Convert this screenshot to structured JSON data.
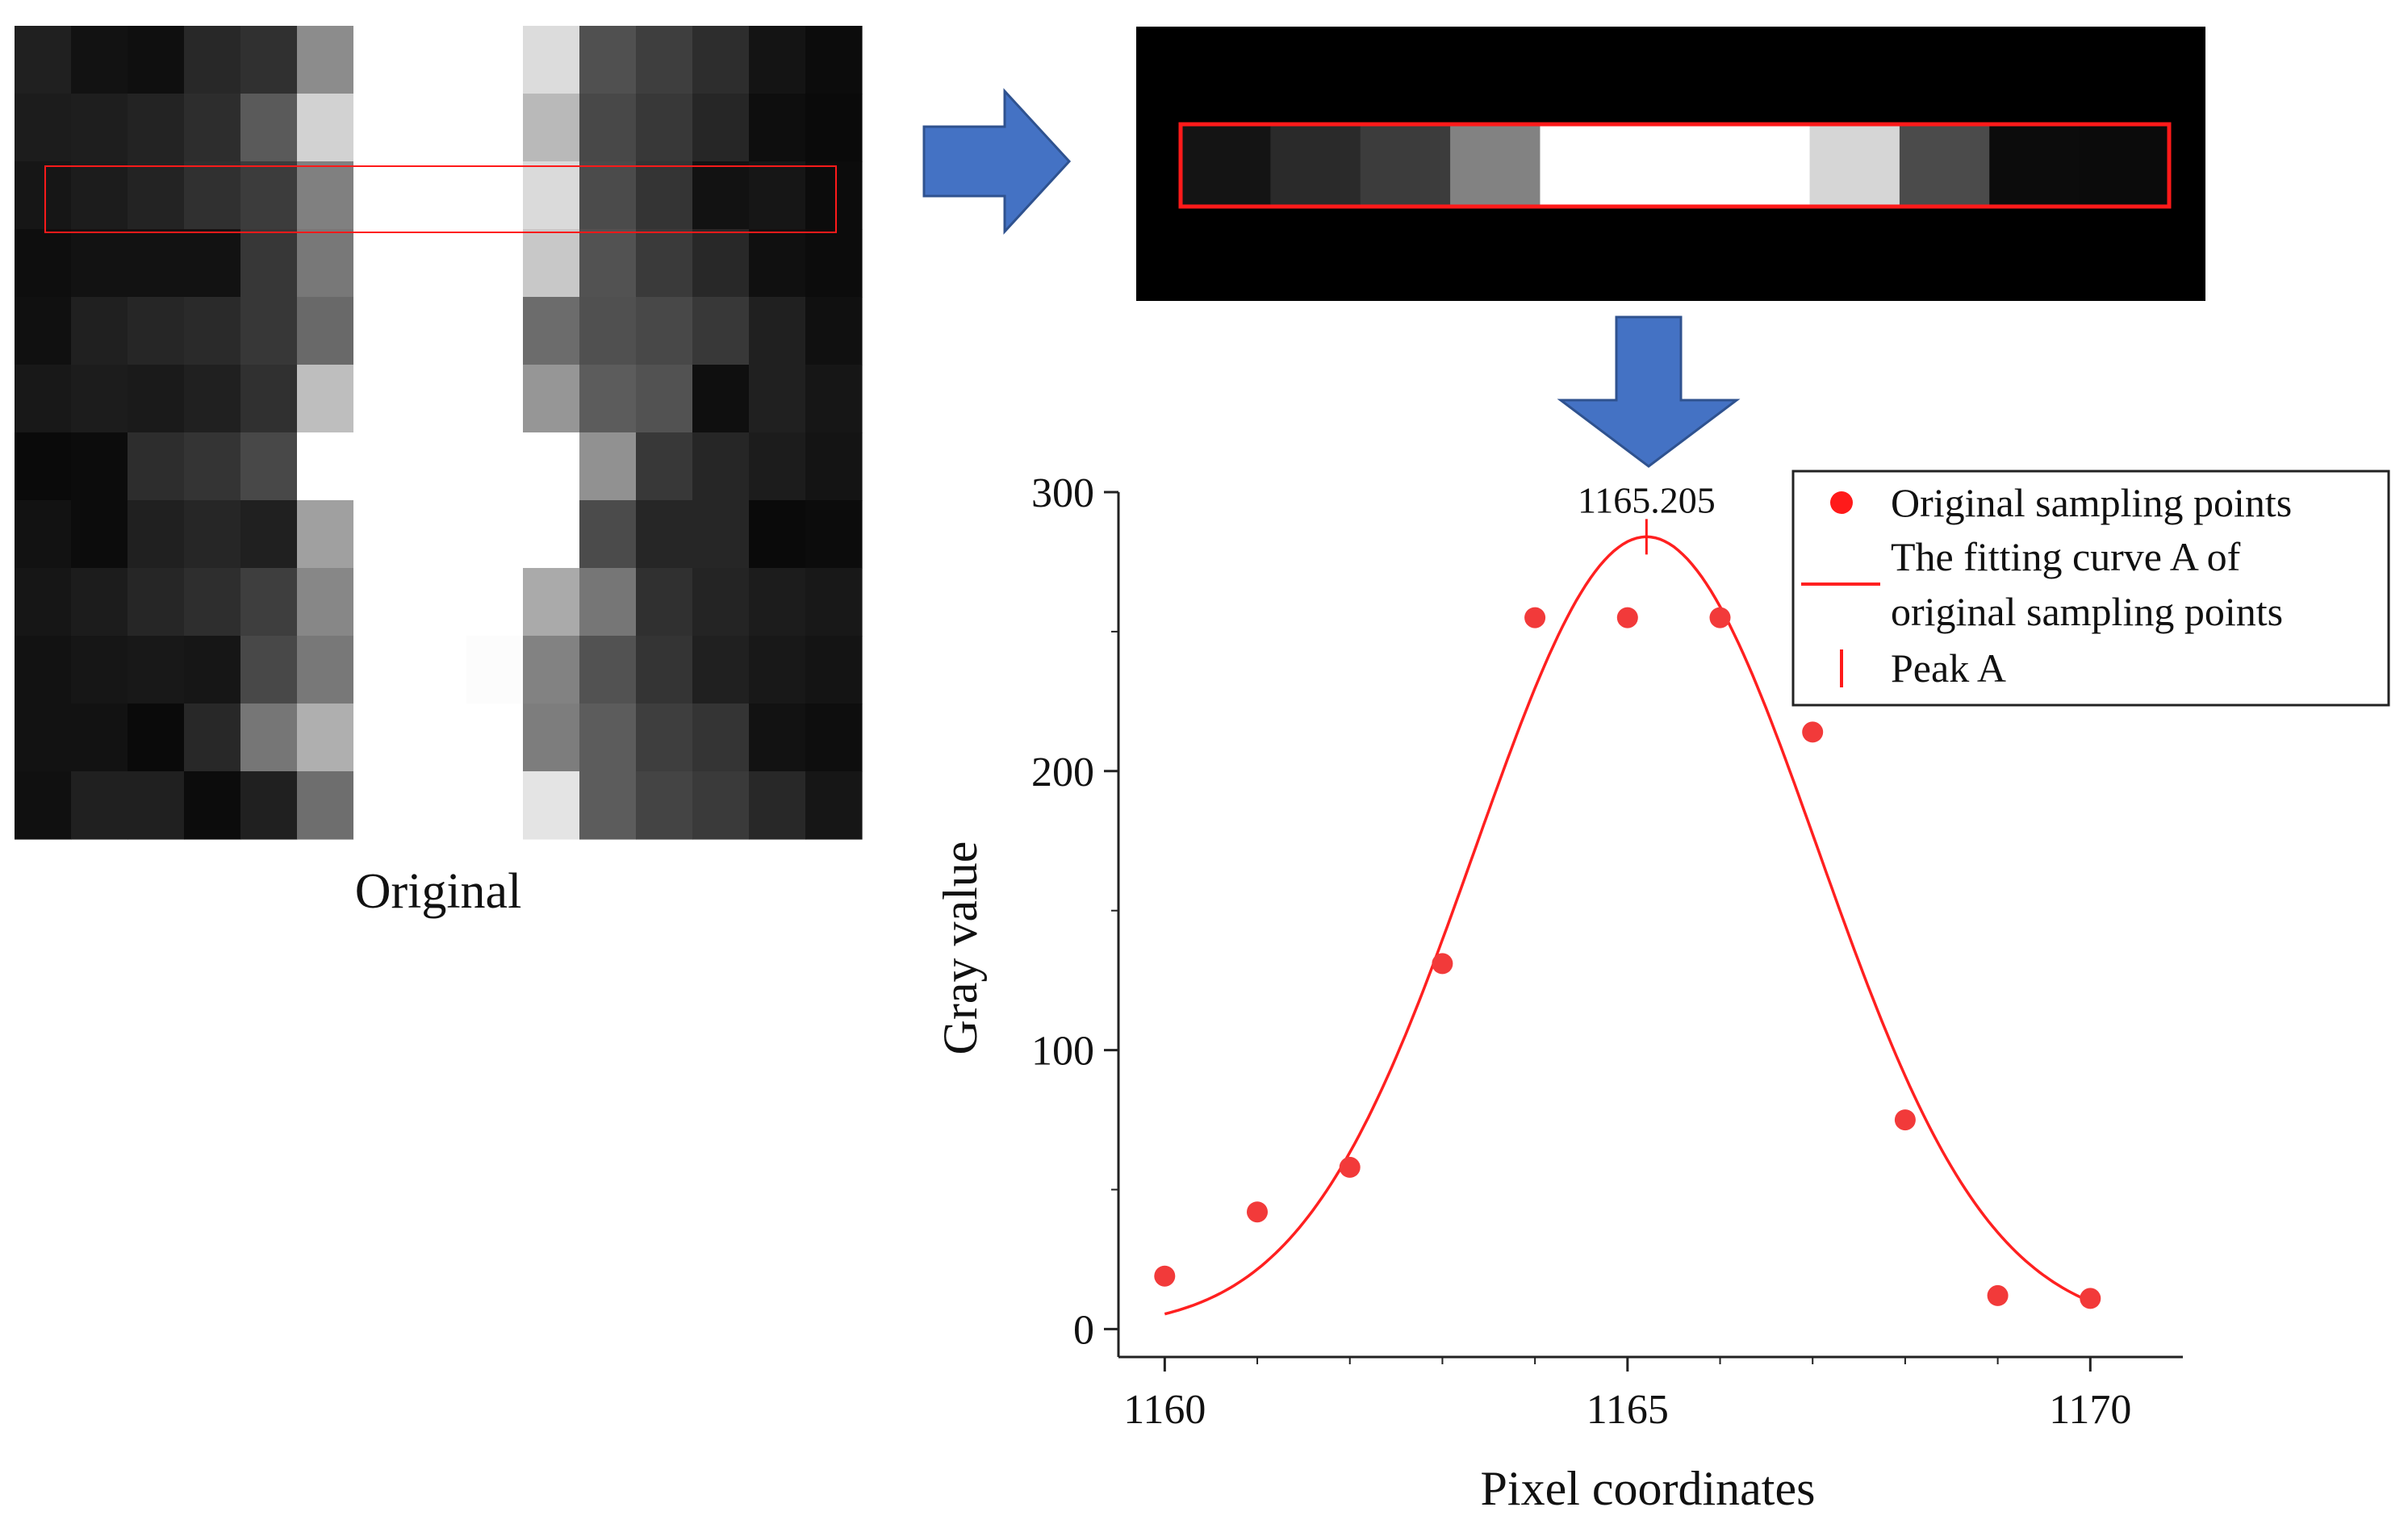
{
  "original_label": "Original",
  "original_image": {
    "rows": [
      [
        32,
        18,
        15,
        40,
        48,
        140,
        255,
        255,
        255,
        220,
        80,
        62,
        45,
        20,
        12
      ],
      [
        28,
        30,
        35,
        45,
        90,
        210,
        255,
        255,
        255,
        185,
        72,
        56,
        38,
        14,
        10
      ],
      [
        22,
        28,
        35,
        48,
        60,
        128,
        255,
        255,
        255,
        218,
        75,
        52,
        18,
        22,
        12
      ],
      [
        14,
        18,
        18,
        18,
        55,
        120,
        255,
        255,
        255,
        200,
        82,
        58,
        40,
        16,
        12
      ],
      [
        16,
        32,
        38,
        42,
        55,
        105,
        255,
        255,
        255,
        108,
        80,
        72,
        56,
        32,
        16
      ],
      [
        24,
        28,
        26,
        32,
        48,
        190,
        255,
        255,
        255,
        150,
        92,
        82,
        15,
        32,
        22
      ],
      [
        10,
        12,
        45,
        52,
        72,
        255,
        255,
        255,
        255,
        255,
        145,
        56,
        38,
        28,
        20
      ],
      [
        18,
        12,
        32,
        38,
        32,
        160,
        255,
        255,
        255,
        255,
        75,
        38,
        38,
        10,
        12
      ],
      [
        22,
        28,
        38,
        46,
        62,
        135,
        255,
        255,
        255,
        170,
        118,
        48,
        36,
        28,
        24
      ],
      [
        18,
        22,
        24,
        22,
        72,
        120,
        255,
        255,
        252,
        130,
        82,
        52,
        32,
        24,
        20
      ],
      [
        18,
        18,
        10,
        40,
        118,
        175,
        255,
        255,
        255,
        125,
        92,
        62,
        52,
        18,
        14
      ],
      [
        16,
        32,
        32,
        12,
        32,
        110,
        255,
        255,
        255,
        228,
        92,
        68,
        58,
        40,
        22
      ]
    ]
  },
  "strip_image": {
    "values": [
      20,
      42,
      60,
      130,
      255,
      255,
      255,
      214,
      75,
      12,
      11
    ]
  },
  "chart_data": {
    "type": "scatter",
    "title": "",
    "xlabel": "Pixel coordinates",
    "ylabel": "Gray value",
    "xlim": [
      1159.5,
      1171.0
    ],
    "ylim": [
      -10,
      300
    ],
    "xticks": [
      1160,
      1165,
      1170
    ],
    "yticks": [
      0,
      100,
      200,
      300
    ],
    "x_minor_ticks": [
      1161,
      1162,
      1163,
      1164,
      1166,
      1167,
      1168,
      1169
    ],
    "series": [
      {
        "name": "Original sampling points",
        "x": [
          1160,
          1161,
          1162,
          1163,
          1164,
          1165,
          1166,
          1167,
          1168,
          1169,
          1170
        ],
        "y": [
          19,
          42,
          58,
          131,
          255,
          255,
          255,
          214,
          75,
          12,
          11
        ]
      }
    ],
    "fit_curve": {
      "name": "The fitting curve A of original sampling points",
      "model": "gaussian",
      "center": 1165.205,
      "amplitude": 284,
      "sigma": 1.85,
      "x_range": [
        1160,
        1170
      ]
    },
    "peak": {
      "name": "Peak A",
      "x": 1165.205,
      "y": 284,
      "label": "1165.205"
    },
    "legend": {
      "placement": "top-right",
      "entries": [
        "Original sampling points",
        "The fitting curve A of",
        "original sampling points",
        "Peak A"
      ]
    }
  },
  "colors": {
    "marker": "#f23a3a",
    "curve": "#ff2020",
    "highlight": "#ff1a1a",
    "arrow_fill": "#4472c4",
    "arrow_stroke": "#2f528f",
    "axis": "#222222",
    "strip_bg": "#000000"
  }
}
